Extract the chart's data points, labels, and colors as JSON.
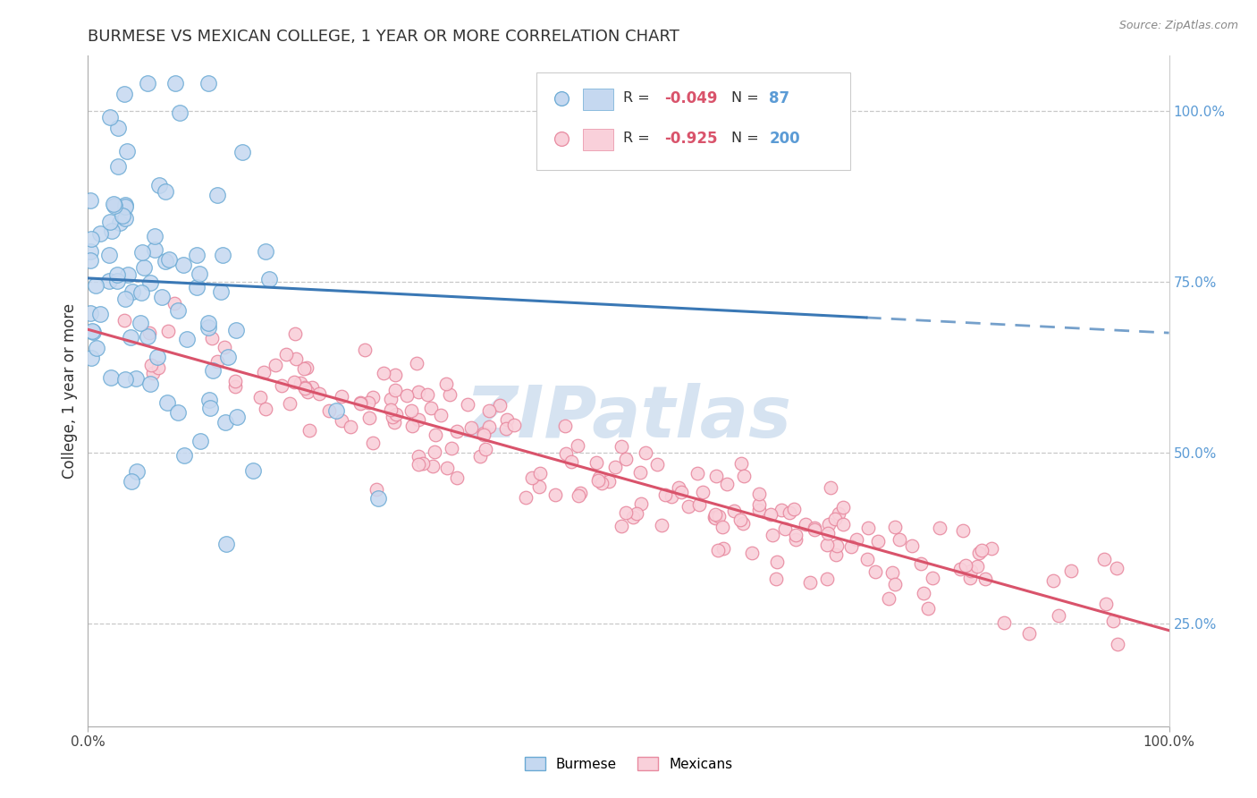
{
  "title": "BURMESE VS MEXICAN COLLEGE, 1 YEAR OR MORE CORRELATION CHART",
  "source_text": "Source: ZipAtlas.com",
  "ylabel": "College, 1 year or more",
  "ylabel_right_ticks": [
    "25.0%",
    "50.0%",
    "75.0%",
    "100.0%"
  ],
  "ylabel_right_vals": [
    0.25,
    0.5,
    0.75,
    1.0
  ],
  "legend_entries": [
    {
      "label": "Burmese",
      "R": -0.049,
      "N": 87,
      "color": "#c5d8f0",
      "edge_color": "#6aaad4",
      "line_color": "#3a78b5"
    },
    {
      "label": "Mexicans",
      "R": -0.925,
      "N": 200,
      "color": "#f9d0da",
      "edge_color": "#e88aa0",
      "line_color": "#d9536b"
    }
  ],
  "watermark": "ZIPatlas",
  "watermark_color": "#c5d8ec",
  "background_color": "#ffffff",
  "title_fontsize": 13,
  "title_color": "#333333",
  "source_fontsize": 9,
  "right_tick_color": "#5b9bd5",
  "legend_R_color": "#d9536b",
  "legend_N_color": "#5b9bd5",
  "burmese_trend_intercept": 0.755,
  "burmese_trend_slope": -0.08,
  "mexican_trend_intercept": 0.68,
  "mexican_trend_slope": -0.44,
  "xlim": [
    0,
    1.0
  ],
  "ylim": [
    0.1,
    1.08
  ]
}
